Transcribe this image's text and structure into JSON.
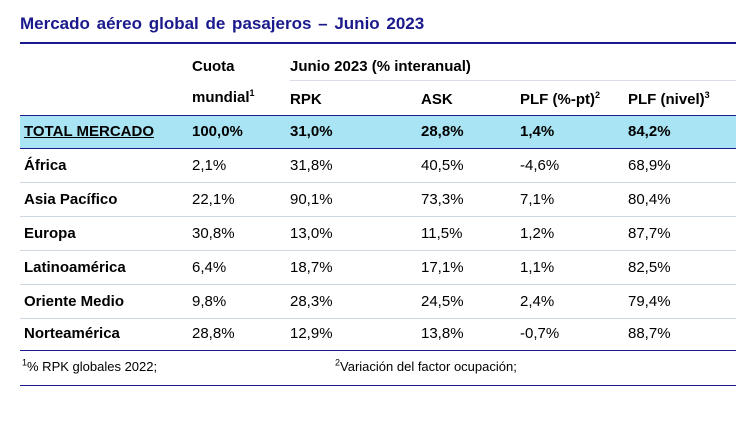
{
  "title": "Mercado aéreo global de pasajeros – Junio 2023",
  "header": {
    "share_line1": "Cuota",
    "share_line2": "mundial",
    "share_sup": "1",
    "group_label": "Junio 2023 (% interanual)",
    "col_rpk": "RPK",
    "col_ask": "ASK",
    "col_plf_pt": "PLF (%-pt)",
    "col_plf_pt_sup": "2",
    "col_plf_level": "PLF (nivel)",
    "col_plf_level_sup": "3"
  },
  "rows": [
    {
      "region": "TOTAL MERCADO",
      "share": "100,0%",
      "rpk": "31,0%",
      "ask": "28,8%",
      "plf_pt": "1,4%",
      "plf_level": "84,2%"
    },
    {
      "region": "África",
      "share": "2,1%",
      "rpk": "31,8%",
      "ask": "40,5%",
      "plf_pt": "-4,6%",
      "plf_level": "68,9%"
    },
    {
      "region": "Asia Pacífico",
      "share": "22,1%",
      "rpk": "90,1%",
      "ask": "73,3%",
      "plf_pt": "7,1%",
      "plf_level": "80,4%"
    },
    {
      "region": "Europa",
      "share": "30,8%",
      "rpk": "13,0%",
      "ask": "11,5%",
      "plf_pt": "1,2%",
      "plf_level": "87,7%"
    },
    {
      "region": "Latinoamérica",
      "share": "6,4%",
      "rpk": "18,7%",
      "ask": "17,1%",
      "plf_pt": "1,1%",
      "plf_level": "82,5%"
    },
    {
      "region": "Oriente Medio",
      "share": "9,8%",
      "rpk": "28,3%",
      "ask": "24,5%",
      "plf_pt": "2,4%",
      "plf_level": "79,4%"
    },
    {
      "region": "Norteamérica",
      "share": "28,8%",
      "rpk": "12,9%",
      "ask": "13,8%",
      "plf_pt": "-0,7%",
      "plf_level": "88,7%"
    }
  ],
  "footnotes": {
    "note1_sup": "1",
    "note1_text": "% RPK globales 2022;",
    "note2_sup": "2",
    "note2_text": "Variación del factor ocupación;"
  },
  "colors": {
    "title": "#1a1a8c",
    "total_row_bg": "#a8e4f3"
  }
}
